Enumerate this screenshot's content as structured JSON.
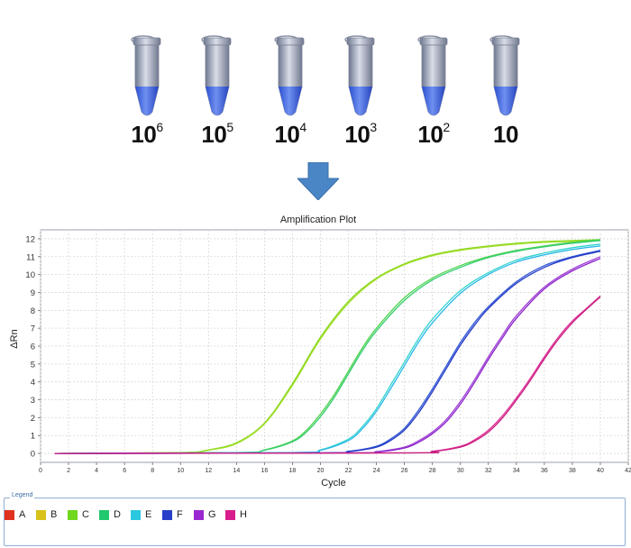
{
  "tubes": [
    {
      "base": "10",
      "exp": "6"
    },
    {
      "base": "10",
      "exp": "5"
    },
    {
      "base": "10",
      "exp": "4"
    },
    {
      "base": "10",
      "exp": "3"
    },
    {
      "base": "10",
      "exp": "2"
    },
    {
      "base": "10",
      "exp": ""
    }
  ],
  "legend": {
    "title": "Legend",
    "items": [
      {
        "label": "A",
        "color": "#e0321e"
      },
      {
        "label": "B",
        "color": "#d8c21a"
      },
      {
        "label": "C",
        "color": "#6fd81f"
      },
      {
        "label": "D",
        "color": "#22c86e"
      },
      {
        "label": "E",
        "color": "#2bc8e0"
      },
      {
        "label": "F",
        "color": "#2840c8"
      },
      {
        "label": "G",
        "color": "#9a28d0"
      },
      {
        "label": "H",
        "color": "#d81e8c"
      }
    ]
  },
  "chart_data": {
    "type": "line",
    "title": "Amplification Plot",
    "xlabel": "Cycle",
    "ylabel": "ΔRn",
    "xlim": [
      0,
      42
    ],
    "ylim": [
      -0.5,
      12.5
    ],
    "xticks": [
      0,
      2,
      4,
      6,
      8,
      10,
      12,
      14,
      16,
      18,
      20,
      22,
      24,
      26,
      28,
      30,
      32,
      34,
      36,
      38,
      40,
      42
    ],
    "yticks": [
      0,
      1,
      2,
      3,
      4,
      5,
      6,
      7,
      8,
      9,
      10,
      11,
      12
    ],
    "grid": true,
    "series": [
      {
        "name": "C",
        "color": "#8ad81f",
        "x": [
          1,
          10,
          12,
          14,
          16,
          18,
          20,
          22,
          24,
          26,
          28,
          30,
          32,
          34,
          36,
          38,
          40
        ],
        "y": [
          0,
          0.05,
          0.2,
          0.6,
          1.7,
          3.9,
          6.5,
          8.5,
          9.8,
          10.6,
          11.1,
          11.4,
          11.6,
          11.75,
          11.85,
          11.9,
          11.95
        ]
      },
      {
        "name": "C",
        "color": "#a2de2a",
        "x": [
          1,
          10,
          12,
          14,
          16,
          18,
          20,
          22,
          24,
          26,
          28,
          30,
          32,
          34,
          36,
          38,
          40
        ],
        "y": [
          0,
          0.05,
          0.18,
          0.55,
          1.65,
          3.8,
          6.4,
          8.4,
          9.75,
          10.55,
          11.05,
          11.35,
          11.55,
          11.7,
          11.8,
          11.85,
          11.9
        ]
      },
      {
        "name": "D",
        "color": "#4cd44c",
        "x": [
          1,
          14,
          16,
          18,
          19,
          20,
          21,
          22,
          23,
          24,
          26,
          28,
          30,
          32,
          34,
          36,
          38,
          40
        ],
        "y": [
          0,
          0.05,
          0.2,
          0.7,
          1.3,
          2.2,
          3.3,
          4.6,
          5.9,
          7.0,
          8.7,
          9.8,
          10.5,
          11.0,
          11.35,
          11.6,
          11.8,
          11.95
        ]
      },
      {
        "name": "D",
        "color": "#34cc70",
        "x": [
          1,
          14,
          16,
          18,
          19,
          20,
          21,
          22,
          23,
          24,
          26,
          28,
          30,
          32,
          34,
          36,
          38,
          40
        ],
        "y": [
          0,
          0.05,
          0.18,
          0.65,
          1.2,
          2.05,
          3.15,
          4.45,
          5.75,
          6.85,
          8.55,
          9.7,
          10.4,
          10.95,
          11.3,
          11.55,
          11.75,
          11.9
        ]
      },
      {
        "name": "E",
        "color": "#30d4cc",
        "x": [
          1,
          18,
          20,
          22,
          23,
          24,
          25,
          26,
          27,
          28,
          30,
          32,
          34,
          36,
          38,
          40
        ],
        "y": [
          0,
          0.05,
          0.2,
          0.8,
          1.5,
          2.5,
          3.8,
          5.1,
          6.4,
          7.5,
          9.1,
          10.1,
          10.8,
          11.2,
          11.5,
          11.7
        ]
      },
      {
        "name": "E",
        "color": "#2ab8e8",
        "x": [
          1,
          18,
          20,
          22,
          23,
          24,
          25,
          26,
          27,
          28,
          30,
          32,
          34,
          36,
          38,
          40
        ],
        "y": [
          0,
          0.05,
          0.18,
          0.72,
          1.38,
          2.35,
          3.6,
          4.9,
          6.2,
          7.3,
          8.95,
          10.0,
          10.7,
          11.1,
          11.4,
          11.6
        ]
      },
      {
        "name": "F",
        "color": "#2f56d8",
        "x": [
          1,
          20,
          22,
          24,
          25,
          26,
          27,
          28,
          29,
          30,
          31,
          32,
          34,
          36,
          38,
          40
        ],
        "y": [
          0,
          0.03,
          0.12,
          0.4,
          0.8,
          1.4,
          2.4,
          3.6,
          4.9,
          6.2,
          7.3,
          8.2,
          9.6,
          10.5,
          11.0,
          11.35
        ]
      },
      {
        "name": "F",
        "color": "#2438c4",
        "x": [
          1,
          20,
          22,
          24,
          25,
          26,
          27,
          28,
          29,
          30,
          31,
          32,
          34,
          36,
          38,
          40
        ],
        "y": [
          0,
          0.03,
          0.1,
          0.35,
          0.72,
          1.3,
          2.25,
          3.45,
          4.75,
          6.05,
          7.15,
          8.1,
          9.5,
          10.4,
          10.95,
          11.3
        ]
      },
      {
        "name": "G",
        "color": "#a040d8",
        "x": [
          1,
          22,
          24,
          26,
          27,
          28,
          29,
          30,
          31,
          32,
          33,
          34,
          36,
          38,
          40
        ],
        "y": [
          0,
          0.03,
          0.1,
          0.35,
          0.7,
          1.2,
          1.9,
          2.9,
          4.1,
          5.4,
          6.6,
          7.7,
          9.3,
          10.3,
          11.0
        ]
      },
      {
        "name": "G",
        "color": "#8a22c8",
        "x": [
          1,
          22,
          24,
          26,
          27,
          28,
          29,
          30,
          31,
          32,
          33,
          34,
          36,
          38,
          40
        ],
        "y": [
          0,
          0.03,
          0.08,
          0.3,
          0.62,
          1.1,
          1.78,
          2.75,
          3.95,
          5.25,
          6.45,
          7.55,
          9.2,
          10.2,
          10.9
        ]
      },
      {
        "name": "H",
        "color": "#e03098",
        "x": [
          1,
          26,
          28,
          30,
          31,
          32,
          33,
          34,
          35,
          36,
          37,
          38,
          39,
          40
        ],
        "y": [
          0,
          0.03,
          0.12,
          0.4,
          0.75,
          1.3,
          2.1,
          3.1,
          4.2,
          5.4,
          6.5,
          7.4,
          8.1,
          8.8
        ]
      },
      {
        "name": "H",
        "color": "#c81e80",
        "x": [
          1,
          26,
          28,
          30,
          31,
          32,
          33,
          34,
          35,
          36,
          37,
          38,
          39,
          40
        ],
        "y": [
          0,
          0.03,
          0.1,
          0.35,
          0.68,
          1.2,
          1.98,
          2.98,
          4.08,
          5.28,
          6.38,
          7.3,
          8.05,
          8.75
        ]
      }
    ]
  }
}
